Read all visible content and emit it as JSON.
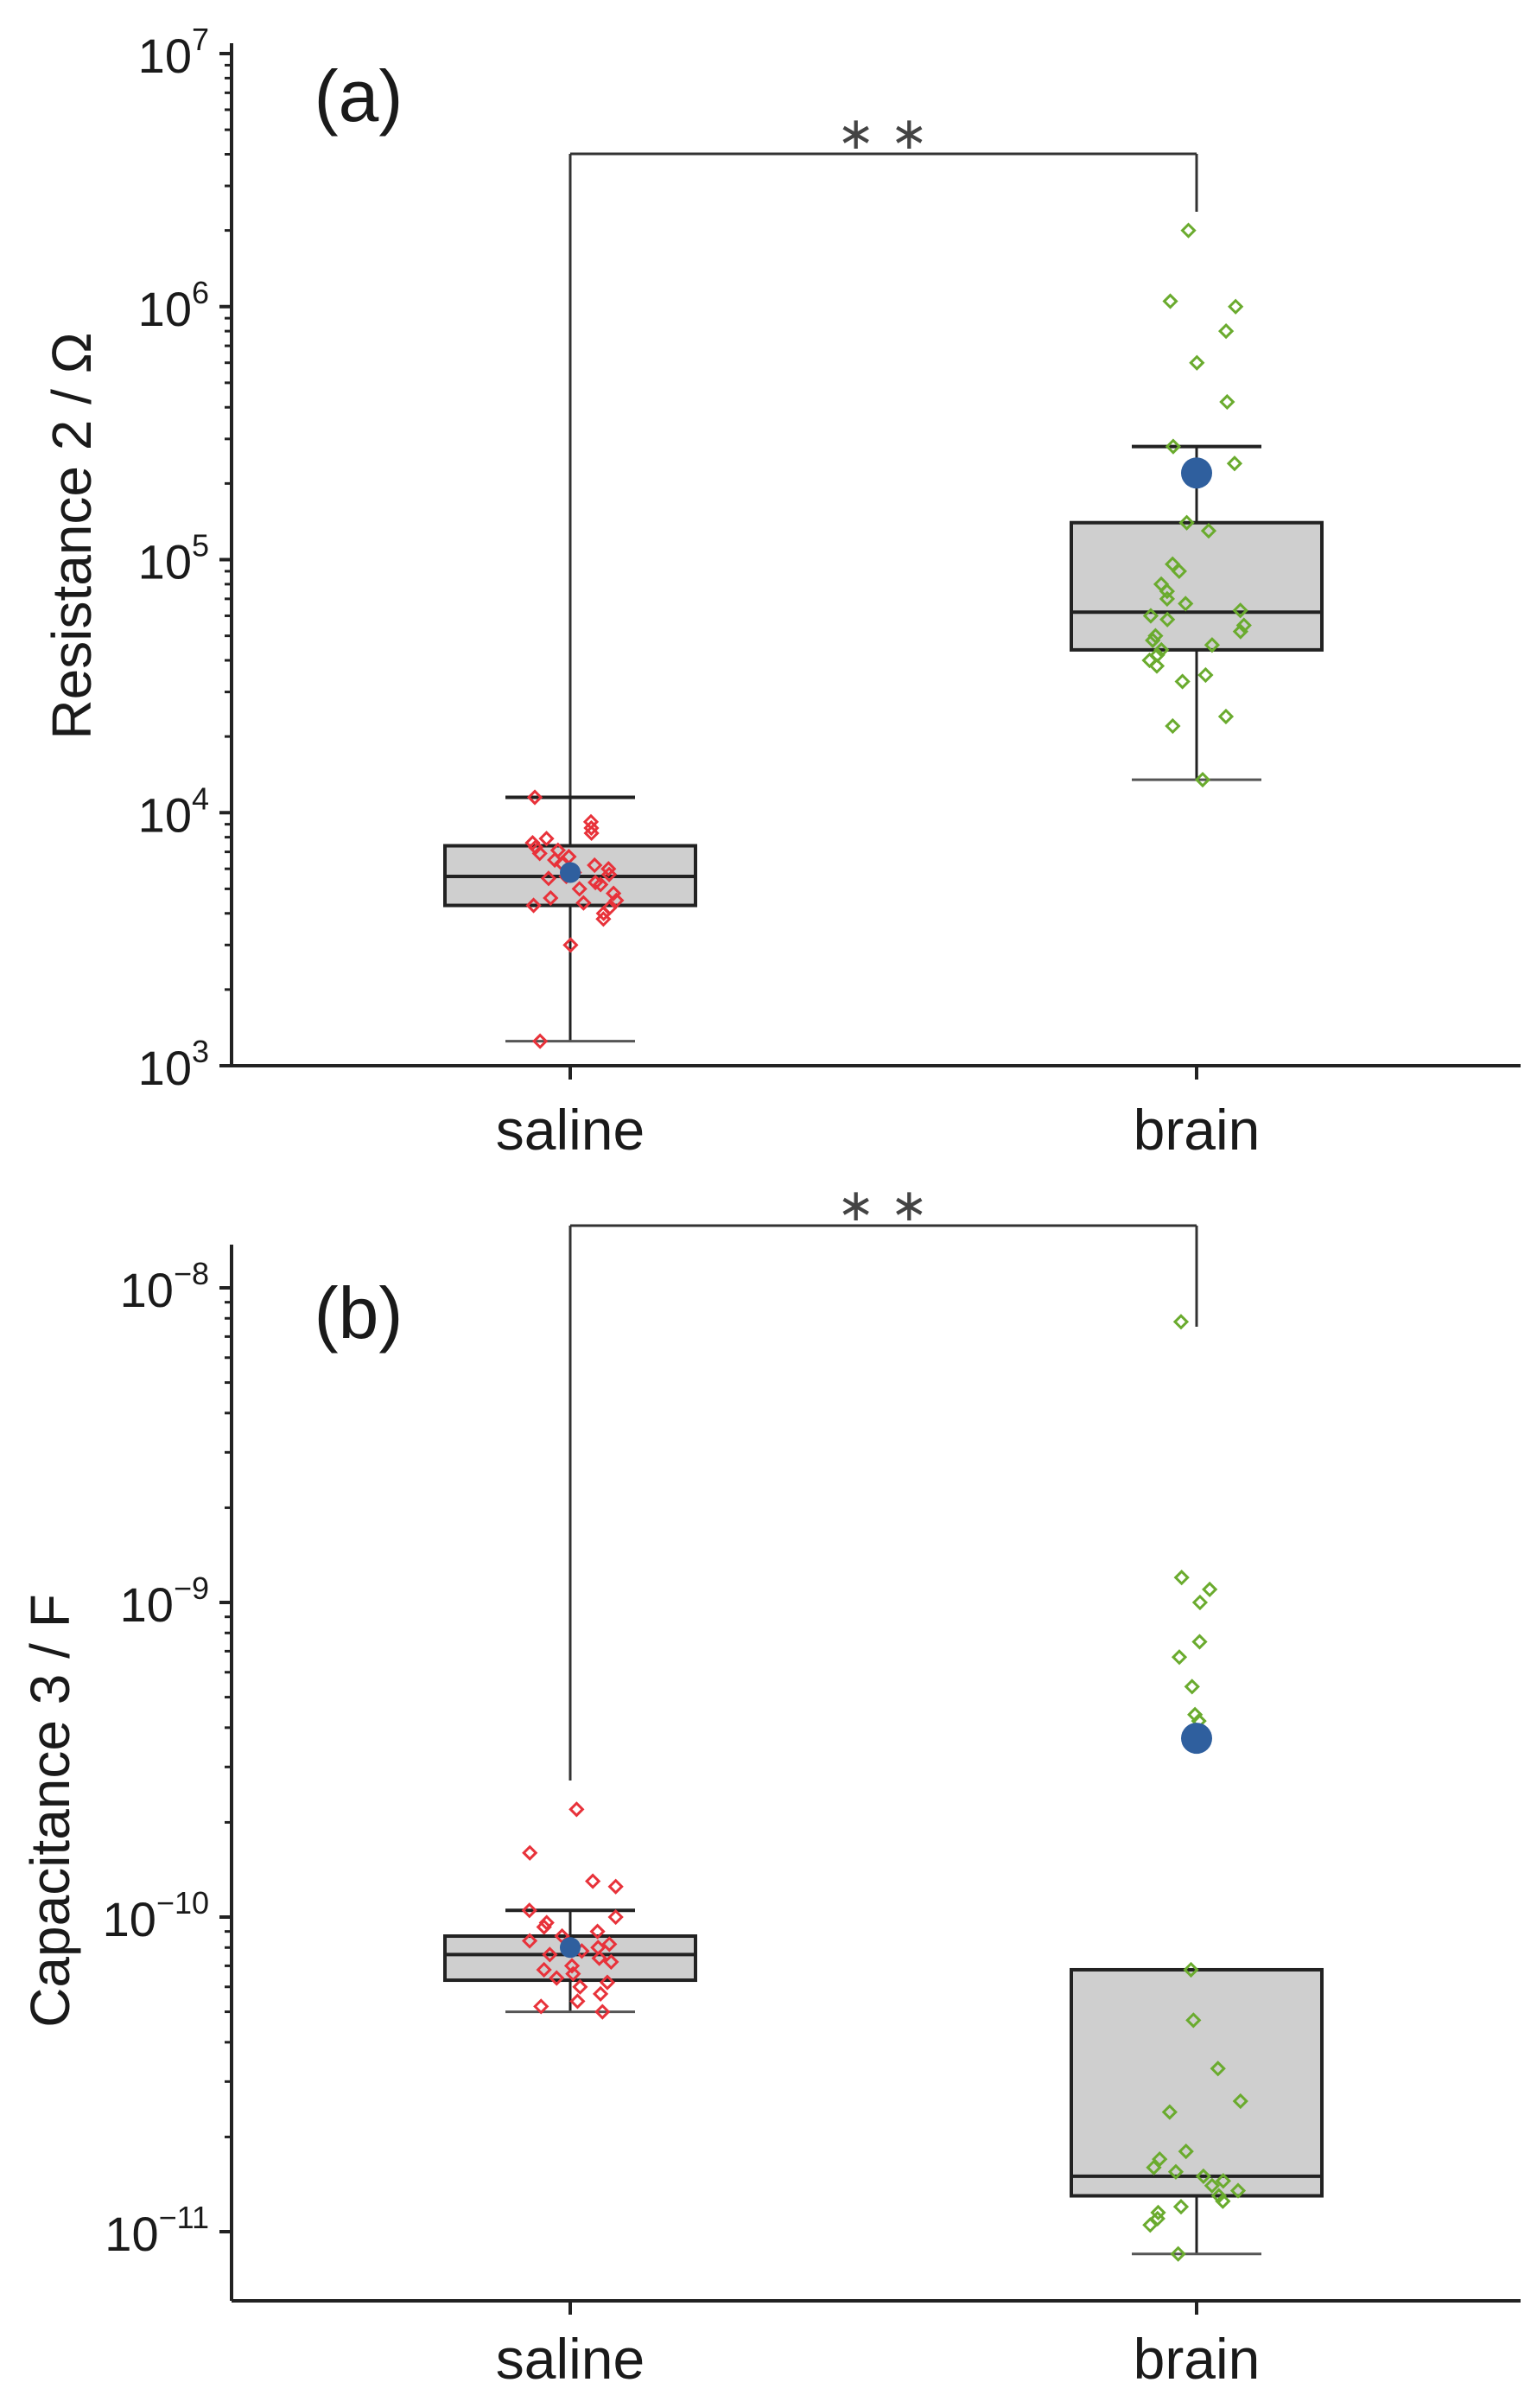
{
  "colors": {
    "saline_points": "#e8323a",
    "brain_points": "#6aab2e",
    "mean_marker": "#2f5f9e",
    "box_fill": "#cfcfcf",
    "box_edge": "#222222",
    "axis": "#222222"
  },
  "chart_data": [
    {
      "type": "box",
      "panel_label": "(a)",
      "ylabel": "Resistance 2 / Ω",
      "yscale": "log",
      "ylim": [
        1000,
        10000000
      ],
      "y_ticks": [
        {
          "base": "10",
          "exp": "3",
          "value": 1000
        },
        {
          "base": "10",
          "exp": "4",
          "value": 10000
        },
        {
          "base": "10",
          "exp": "5",
          "value": 100000
        },
        {
          "base": "10",
          "exp": "6",
          "value": 1000000
        },
        {
          "base": "10",
          "exp": "7",
          "value": 10000000
        }
      ],
      "categories": [
        "saline",
        "brain"
      ],
      "significance": "∗∗",
      "groups": [
        {
          "name": "saline",
          "min": 1250,
          "q1": 4300,
          "median": 5600,
          "q3": 7400,
          "max": 11500,
          "mean": 5800,
          "points": [
            1250,
            3000,
            3800,
            4000,
            4200,
            4300,
            4400,
            4500,
            4600,
            4800,
            5000,
            5200,
            5300,
            5500,
            5600,
            5700,
            5800,
            6000,
            6200,
            6300,
            6500,
            6700,
            6900,
            7100,
            7300,
            7600,
            7900,
            8300,
            8700,
            9200,
            11500
          ]
        },
        {
          "name": "brain",
          "min": 13500,
          "q1": 44000,
          "median": 62000,
          "q3": 140000,
          "max": 280000,
          "mean": 220000,
          "points": [
            13500,
            22000,
            24000,
            33000,
            35000,
            38000,
            40000,
            42000,
            44000,
            46000,
            48000,
            50000,
            52000,
            55000,
            58000,
            60000,
            63000,
            67000,
            70000,
            75000,
            80000,
            90000,
            96000,
            130000,
            140000,
            240000,
            280000,
            420000,
            600000,
            800000,
            1000000,
            1050000,
            2000000
          ]
        }
      ]
    },
    {
      "type": "box",
      "panel_label": "(b)",
      "ylabel": "Capacitance 3 / F",
      "yscale": "log",
      "ylim": [
        6e-12,
        1.5e-08
      ],
      "y_ticks": [
        {
          "base": "10",
          "exp": "−11",
          "value": 1e-11
        },
        {
          "base": "10",
          "exp": "−10",
          "value": 1e-10
        },
        {
          "base": "10",
          "exp": "−9",
          "value": 1e-09
        },
        {
          "base": "10",
          "exp": "−8",
          "value": 1e-08
        }
      ],
      "categories": [
        "saline",
        "brain"
      ],
      "significance": "∗∗",
      "groups": [
        {
          "name": "saline",
          "min": 5e-11,
          "q1": 6.3e-11,
          "median": 7.6e-11,
          "q3": 8.7e-11,
          "max": 1.05e-10,
          "mean": 8e-11,
          "points": [
            5e-11,
            5.2e-11,
            5.4e-11,
            5.7e-11,
            6e-11,
            6.2e-11,
            6.4e-11,
            6.6e-11,
            6.8e-11,
            7e-11,
            7.2e-11,
            7.4e-11,
            7.6e-11,
            7.8e-11,
            8e-11,
            8.2e-11,
            8.4e-11,
            8.7e-11,
            9e-11,
            9.3e-11,
            9.6e-11,
            1e-10,
            1.05e-10,
            1.25e-10,
            1.3e-10,
            1.6e-10,
            2.2e-10
          ]
        },
        {
          "name": "brain",
          "min": 8.5e-12,
          "q1": 1.3e-11,
          "median": 1.5e-11,
          "q3": 6.8e-11,
          "max": 6.8e-11,
          "mean": 3.7e-10,
          "points": [
            8.5e-12,
            1.05e-11,
            1.1e-11,
            1.15e-11,
            1.2e-11,
            1.25e-11,
            1.3e-11,
            1.35e-11,
            1.4e-11,
            1.45e-11,
            1.5e-11,
            1.55e-11,
            1.6e-11,
            1.7e-11,
            1.8e-11,
            2.4e-11,
            2.6e-11,
            3.3e-11,
            4.7e-11,
            6.8e-11,
            4.2e-10,
            4.4e-10,
            5.4e-10,
            6.7e-10,
            7.5e-10,
            1e-09,
            1.1e-09,
            1.2e-09,
            7.8e-09
          ]
        }
      ]
    }
  ]
}
